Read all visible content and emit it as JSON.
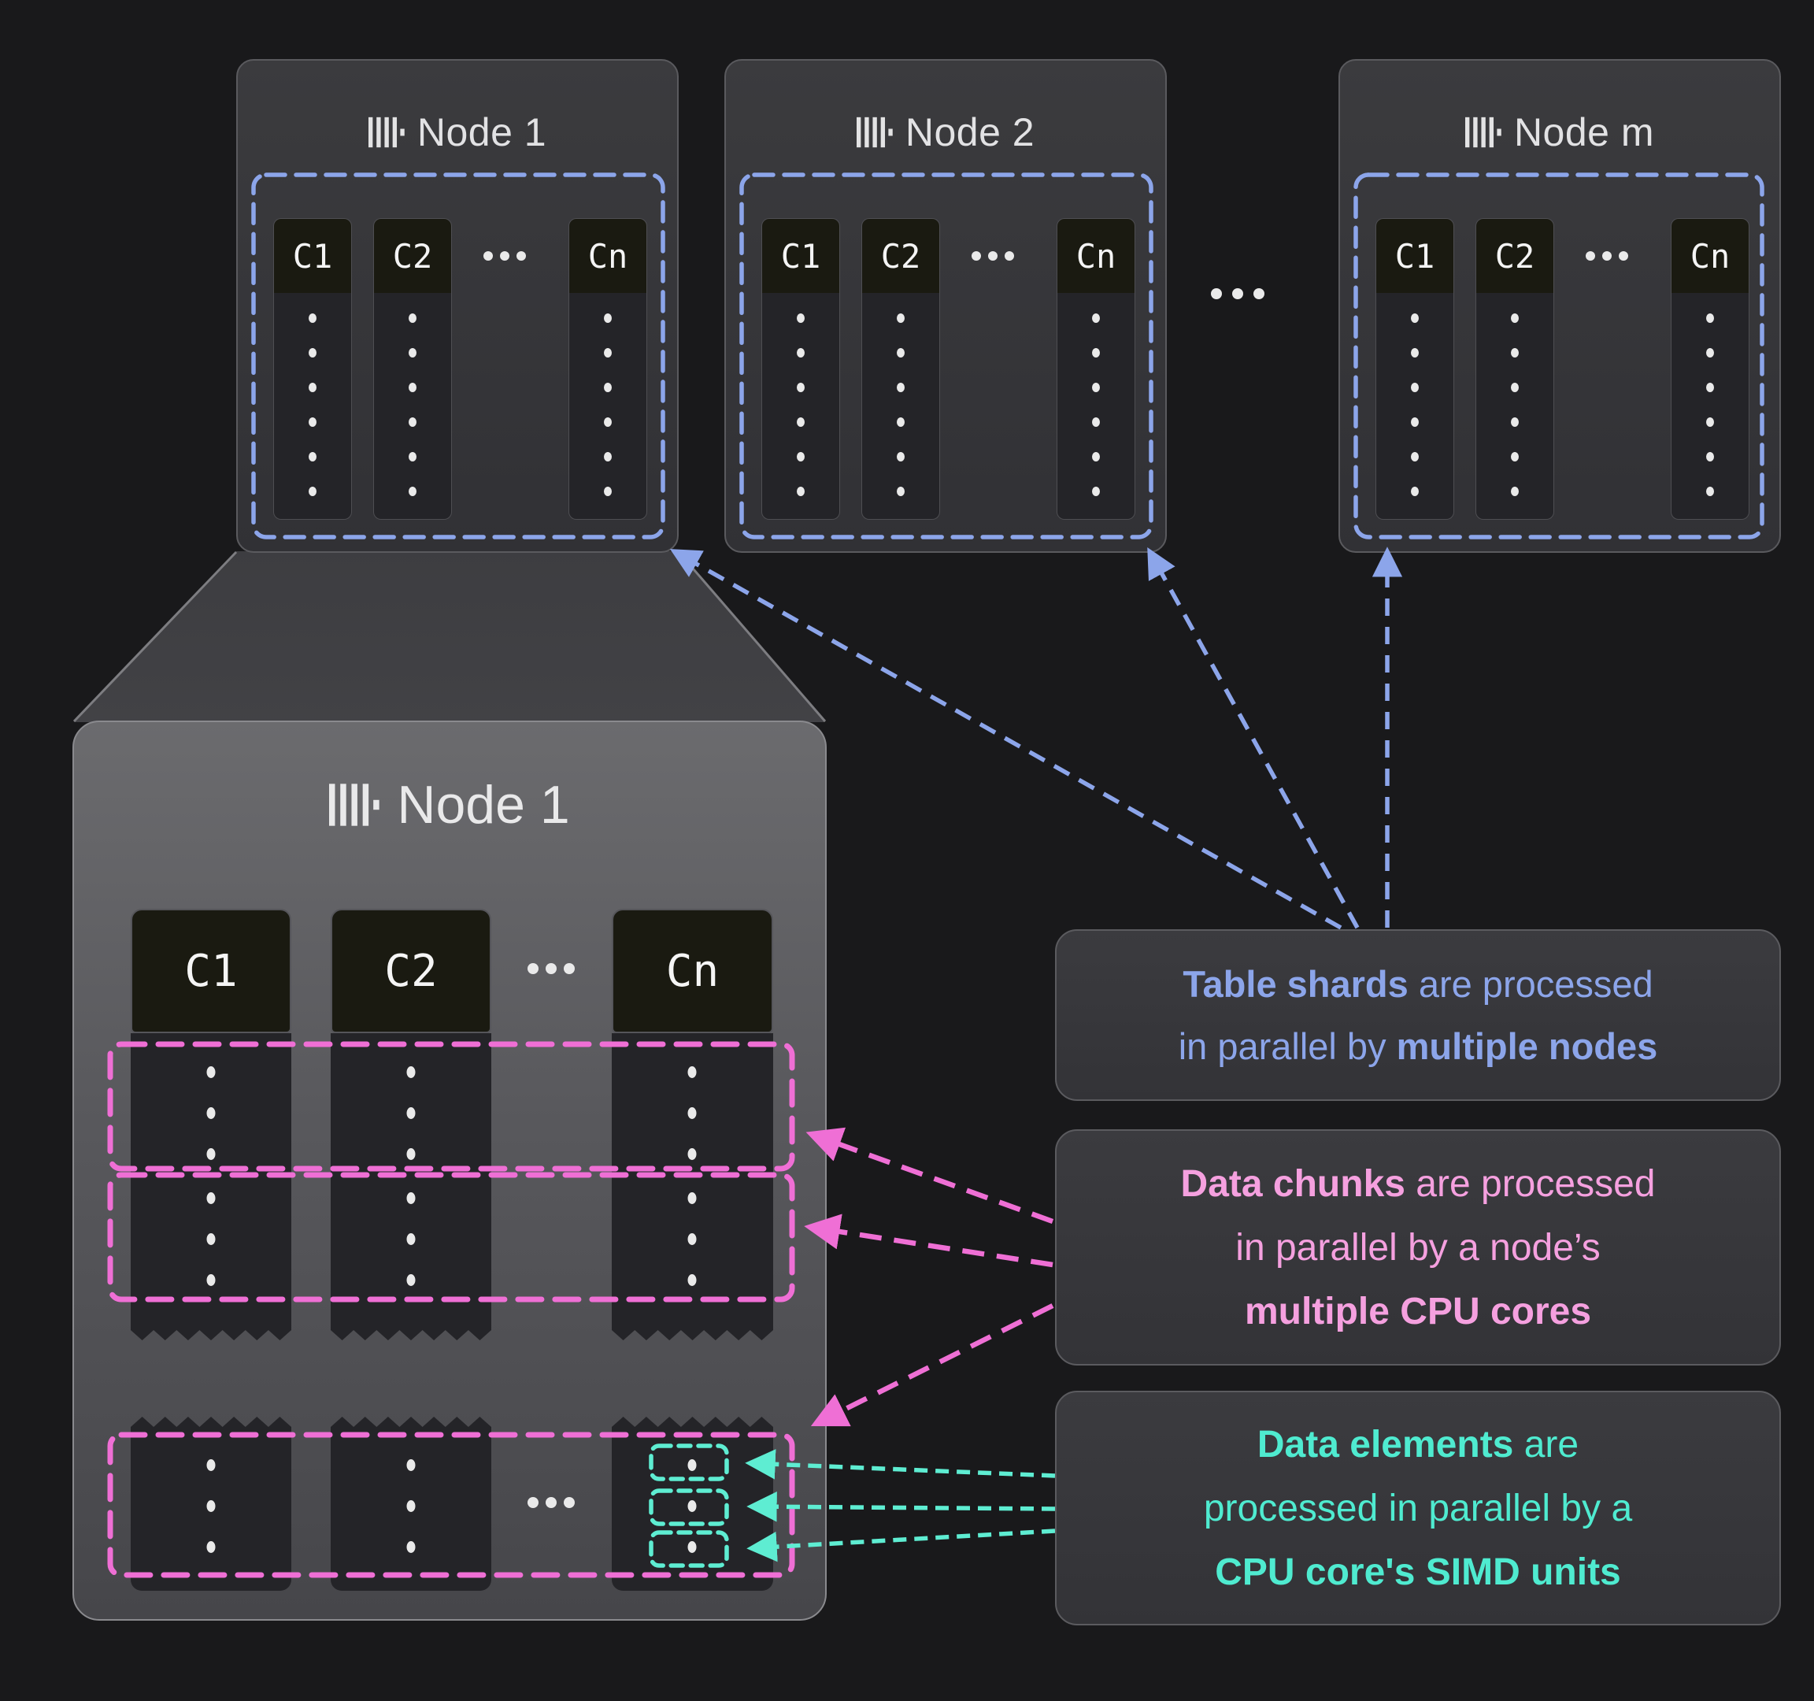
{
  "colors": {
    "background": "#19191B",
    "card_border": "#5A5A5E",
    "big_card_border": "#8A8A8E",
    "column_body": "#242428",
    "column_header_bg": "#1A1A11",
    "blue": "#8CA5EA",
    "pink": "#EF6FD5",
    "pink_text": "#F5A0DF",
    "teal": "#5EEDD2",
    "teal_text": "#4FEBD0",
    "dot": "#EAEAEA",
    "title_text": "#E2E2E4",
    "cone_edge": "#7D7D81"
  },
  "nodes": [
    {
      "title": "Node 1"
    },
    {
      "title": "Node 2"
    },
    {
      "title": "Node m"
    }
  ],
  "detail_node": {
    "title": "Node 1"
  },
  "columns": [
    "C1",
    "C2",
    "Cn"
  ],
  "counts": {
    "top_column_dots": 6,
    "chunk_row_dots": 3,
    "ellipsis_dots": 3
  },
  "annotations": {
    "shards": {
      "lines": [
        [
          {
            "t": "Table shards",
            "b": 1
          },
          {
            "t": " are processed",
            "b": 0
          }
        ],
        [
          {
            "t": "in parallel by ",
            "b": 0
          },
          {
            "t": "multiple nodes",
            "b": 1
          }
        ]
      ]
    },
    "chunks": {
      "lines": [
        [
          {
            "t": "Data chunks",
            "b": 1
          },
          {
            "t": " are processed",
            "b": 0
          }
        ],
        [
          {
            "t": "in parallel by a node’s",
            "b": 0
          }
        ],
        [
          {
            "t": "multiple CPU cores",
            "b": 1
          }
        ]
      ]
    },
    "elements": {
      "lines": [
        [
          {
            "t": "Data elements",
            "b": 1
          },
          {
            "t": " are",
            "b": 0
          }
        ],
        [
          {
            "t": "processed in parallel by a",
            "b": 0
          }
        ],
        [
          {
            "t": "CPU core's SIMD units",
            "b": 1
          }
        ]
      ]
    }
  }
}
